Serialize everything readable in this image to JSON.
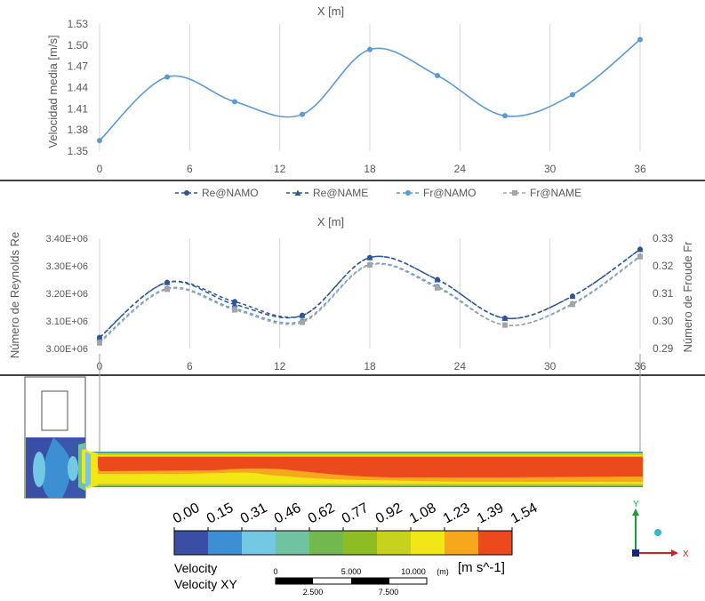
{
  "chart_data": [
    {
      "type": "line",
      "title": "X [m]",
      "ylabel": "Velocidad media [m/s]",
      "x": [
        0,
        4.5,
        9,
        13.5,
        18,
        22.5,
        27,
        31.5,
        36
      ],
      "series": [
        {
          "name": "Velocidad media",
          "values": [
            1.365,
            1.455,
            1.42,
            1.402,
            1.494,
            1.457,
            1.4,
            1.43,
            1.508
          ]
        }
      ],
      "xticks": [
        0,
        6,
        12,
        18,
        24,
        30,
        36
      ],
      "xtick_labels": [
        "0",
        "6",
        "12",
        "18",
        "24",
        "30",
        "36"
      ],
      "yticks": [
        1.35,
        1.38,
        1.41,
        1.44,
        1.47,
        1.5,
        1.53
      ],
      "ytick_labels": [
        "1.35",
        "1.38",
        "1.41",
        "1.44",
        "1.47",
        "1.50",
        "1.53"
      ],
      "xlim": [
        0,
        36
      ],
      "ylim": [
        1.35,
        1.53
      ],
      "grid": true,
      "color": "#5b9bd5"
    },
    {
      "type": "line",
      "title": "X [m]",
      "ylabel": "Número de Reynolds Re",
      "y2label": "Número de Froude Fr",
      "legend_position": "top",
      "x": [
        0,
        4.5,
        9,
        13.5,
        18,
        22.5,
        27,
        31.5,
        36
      ],
      "series": [
        {
          "name": "Re@NAMO",
          "axis": "left",
          "values": [
            3040000.0,
            3240000.0,
            3170000.0,
            3120000.0,
            3330000.0,
            3250000.0,
            3110000.0,
            3190000.0,
            3360000.0
          ],
          "color": "#2f5597",
          "marker": "circle"
        },
        {
          "name": "Re@NAME",
          "axis": "left",
          "values": [
            3040000.0,
            3240000.0,
            3160000.0,
            3120000.0,
            3330000.0,
            3250000.0,
            3110000.0,
            3190000.0,
            3360000.0
          ],
          "color": "#2f5597",
          "marker": "triangle"
        },
        {
          "name": "Fr@NAMO",
          "axis": "right",
          "values": [
            0.2925,
            0.3118,
            0.3045,
            0.3,
            0.3205,
            0.3125,
            0.2985,
            0.3063,
            0.3235
          ],
          "color": "#5b9bd5",
          "marker": "circle"
        },
        {
          "name": "Fr@NAME",
          "axis": "right",
          "values": [
            0.292,
            0.3115,
            0.304,
            0.2995,
            0.3203,
            0.312,
            0.2985,
            0.306,
            0.3233
          ],
          "color": "#a5a5a5",
          "marker": "square"
        }
      ],
      "xticks": [
        0,
        6,
        12,
        18,
        24,
        30,
        36
      ],
      "xtick_labels": [
        "0",
        "6",
        "12",
        "18",
        "24",
        "30",
        "36"
      ],
      "yticks": [
        3000000.0,
        3100000.0,
        3200000.0,
        3300000.0,
        3400000.0
      ],
      "ytick_labels": [
        "3.00E+06",
        "3.10E+06",
        "3.20E+06",
        "3.30E+06",
        "3.40E+06"
      ],
      "y2ticks": [
        0.29,
        0.3,
        0.31,
        0.32,
        0.33
      ],
      "y2tick_labels": [
        "0.29",
        "0.30",
        "0.31",
        "0.32",
        "0.33"
      ],
      "xlim": [
        0,
        36
      ],
      "ylim": [
        3000000.0,
        3400000.0
      ],
      "y2lim": [
        0.29,
        0.33
      ],
      "grid": true
    },
    {
      "type": "heatmap",
      "legend": {
        "title": "Velocity",
        "subtitle": "Velocity XY",
        "unit": "[m s^-1]",
        "labels": [
          "0.00",
          "0.15",
          "0.31",
          "0.46",
          "0.62",
          "0.77",
          "0.92",
          "1.08",
          "1.23",
          "1.39",
          "1.54"
        ],
        "colors": [
          "#3b4ea6",
          "#3d8fd4",
          "#73c8e3",
          "#6fc2a2",
          "#72b84c",
          "#8ebc23",
          "#c7d21a",
          "#f1e715",
          "#f7a71c",
          "#ec4a1c"
        ]
      },
      "scale_bar": {
        "top_labels": [
          "0",
          "5.000",
          "10.000"
        ],
        "bottom_labels": [
          "2.500",
          "7.500"
        ],
        "unit": "(m)"
      },
      "triad": {
        "y": "Y",
        "x": "X"
      }
    }
  ]
}
